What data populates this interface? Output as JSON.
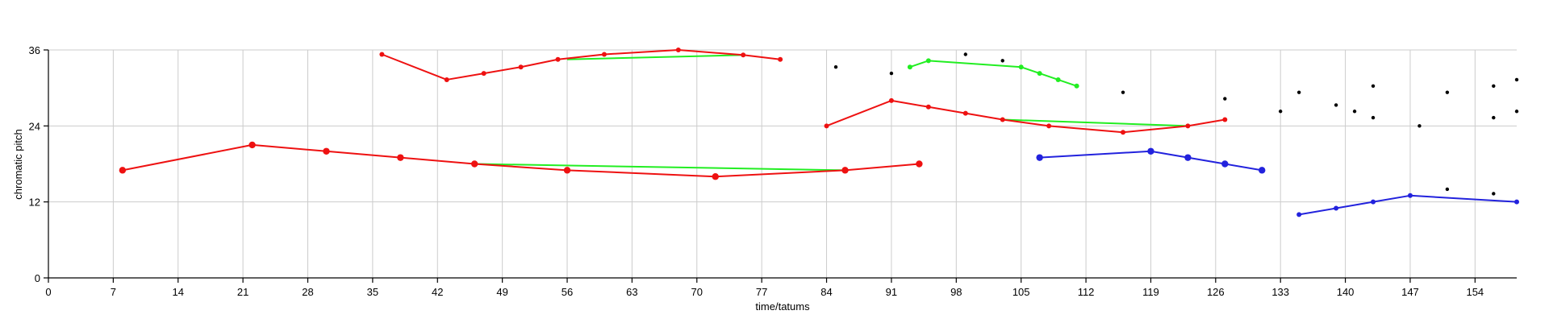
{
  "chart_data": {
    "type": "line",
    "title": "",
    "xlabel": "time/tatums",
    "ylabel": "chromatic pitch",
    "xlim": [
      0,
      158.5
    ],
    "ylim": [
      0,
      36
    ],
    "x_ticks": [
      0,
      7,
      14,
      21,
      28,
      35,
      42,
      49,
      56,
      63,
      70,
      77,
      84,
      91,
      98,
      105,
      112,
      119,
      126,
      133,
      140,
      147,
      154
    ],
    "y_ticks": [
      0,
      12,
      24,
      36
    ],
    "grid": true,
    "legend": "none",
    "colors": {
      "red": "#ee1111",
      "green": "#22ee22",
      "blue": "#2222dd",
      "black": "#000000",
      "grid": "#cccccc"
    },
    "series": [
      {
        "color": "#22ee22",
        "marker": "none",
        "points": [
          [
            46,
            18
          ],
          [
            86,
            17
          ]
        ]
      },
      {
        "color": "#22ee22",
        "marker": "none",
        "points": [
          [
            56,
            34.5
          ],
          [
            75,
            35.2
          ]
        ]
      },
      {
        "color": "#22ee22",
        "marker": "none",
        "points": [
          [
            103,
            25
          ],
          [
            123,
            24
          ]
        ]
      },
      {
        "color": "#ee1111",
        "marker": "large",
        "points": [
          [
            8,
            17
          ],
          [
            22,
            21
          ],
          [
            30,
            20
          ],
          [
            38,
            19
          ],
          [
            46,
            18
          ],
          [
            56,
            17
          ],
          [
            72,
            16
          ],
          [
            86,
            17
          ],
          [
            94,
            18
          ]
        ]
      },
      {
        "color": "#ee1111",
        "marker": "small",
        "points": [
          [
            36,
            35.3
          ],
          [
            43,
            31.3
          ],
          [
            47,
            32.3
          ],
          [
            51,
            33.3
          ],
          [
            55,
            34.5
          ],
          [
            60,
            35.3
          ],
          [
            68,
            36
          ],
          [
            75,
            35.2
          ],
          [
            79,
            34.5
          ]
        ]
      },
      {
        "color": "#ee1111",
        "marker": "small",
        "points": [
          [
            84,
            24
          ],
          [
            91,
            28
          ],
          [
            95,
            27
          ],
          [
            99,
            26
          ],
          [
            103,
            25
          ],
          [
            108,
            24
          ],
          [
            116,
            23
          ],
          [
            123,
            24
          ],
          [
            127,
            25
          ]
        ]
      },
      {
        "color": "#22ee22",
        "marker": "small",
        "points": [
          [
            93,
            33.3
          ],
          [
            95,
            34.3
          ],
          [
            105,
            33.3
          ],
          [
            107,
            32.3
          ],
          [
            109,
            31.3
          ],
          [
            111,
            30.3
          ]
        ]
      },
      {
        "color": "#2222dd",
        "marker": "large",
        "points": [
          [
            107,
            19
          ],
          [
            119,
            20
          ],
          [
            123,
            19
          ],
          [
            127,
            18
          ],
          [
            131,
            17
          ]
        ]
      },
      {
        "color": "#2222dd",
        "marker": "small",
        "points": [
          [
            135,
            10
          ],
          [
            139,
            11
          ],
          [
            143,
            12
          ],
          [
            147,
            13
          ],
          [
            158.5,
            12
          ]
        ]
      }
    ],
    "scatter_points": [
      [
        85,
        33.3
      ],
      [
        91,
        32.3
      ],
      [
        99,
        35.3
      ],
      [
        103,
        34.3
      ],
      [
        116,
        29.3
      ],
      [
        127,
        28.3
      ],
      [
        133,
        26.3
      ],
      [
        135,
        29.3
      ],
      [
        139,
        27.3
      ],
      [
        141,
        26.3
      ],
      [
        143,
        30.3
      ],
      [
        143,
        25.3
      ],
      [
        148,
        24
      ],
      [
        151,
        29.3
      ],
      [
        151,
        14
      ],
      [
        156,
        30.3
      ],
      [
        156,
        25.3
      ],
      [
        156,
        13.3
      ],
      [
        158.5,
        31.3
      ],
      [
        158.5,
        26.3
      ]
    ]
  }
}
